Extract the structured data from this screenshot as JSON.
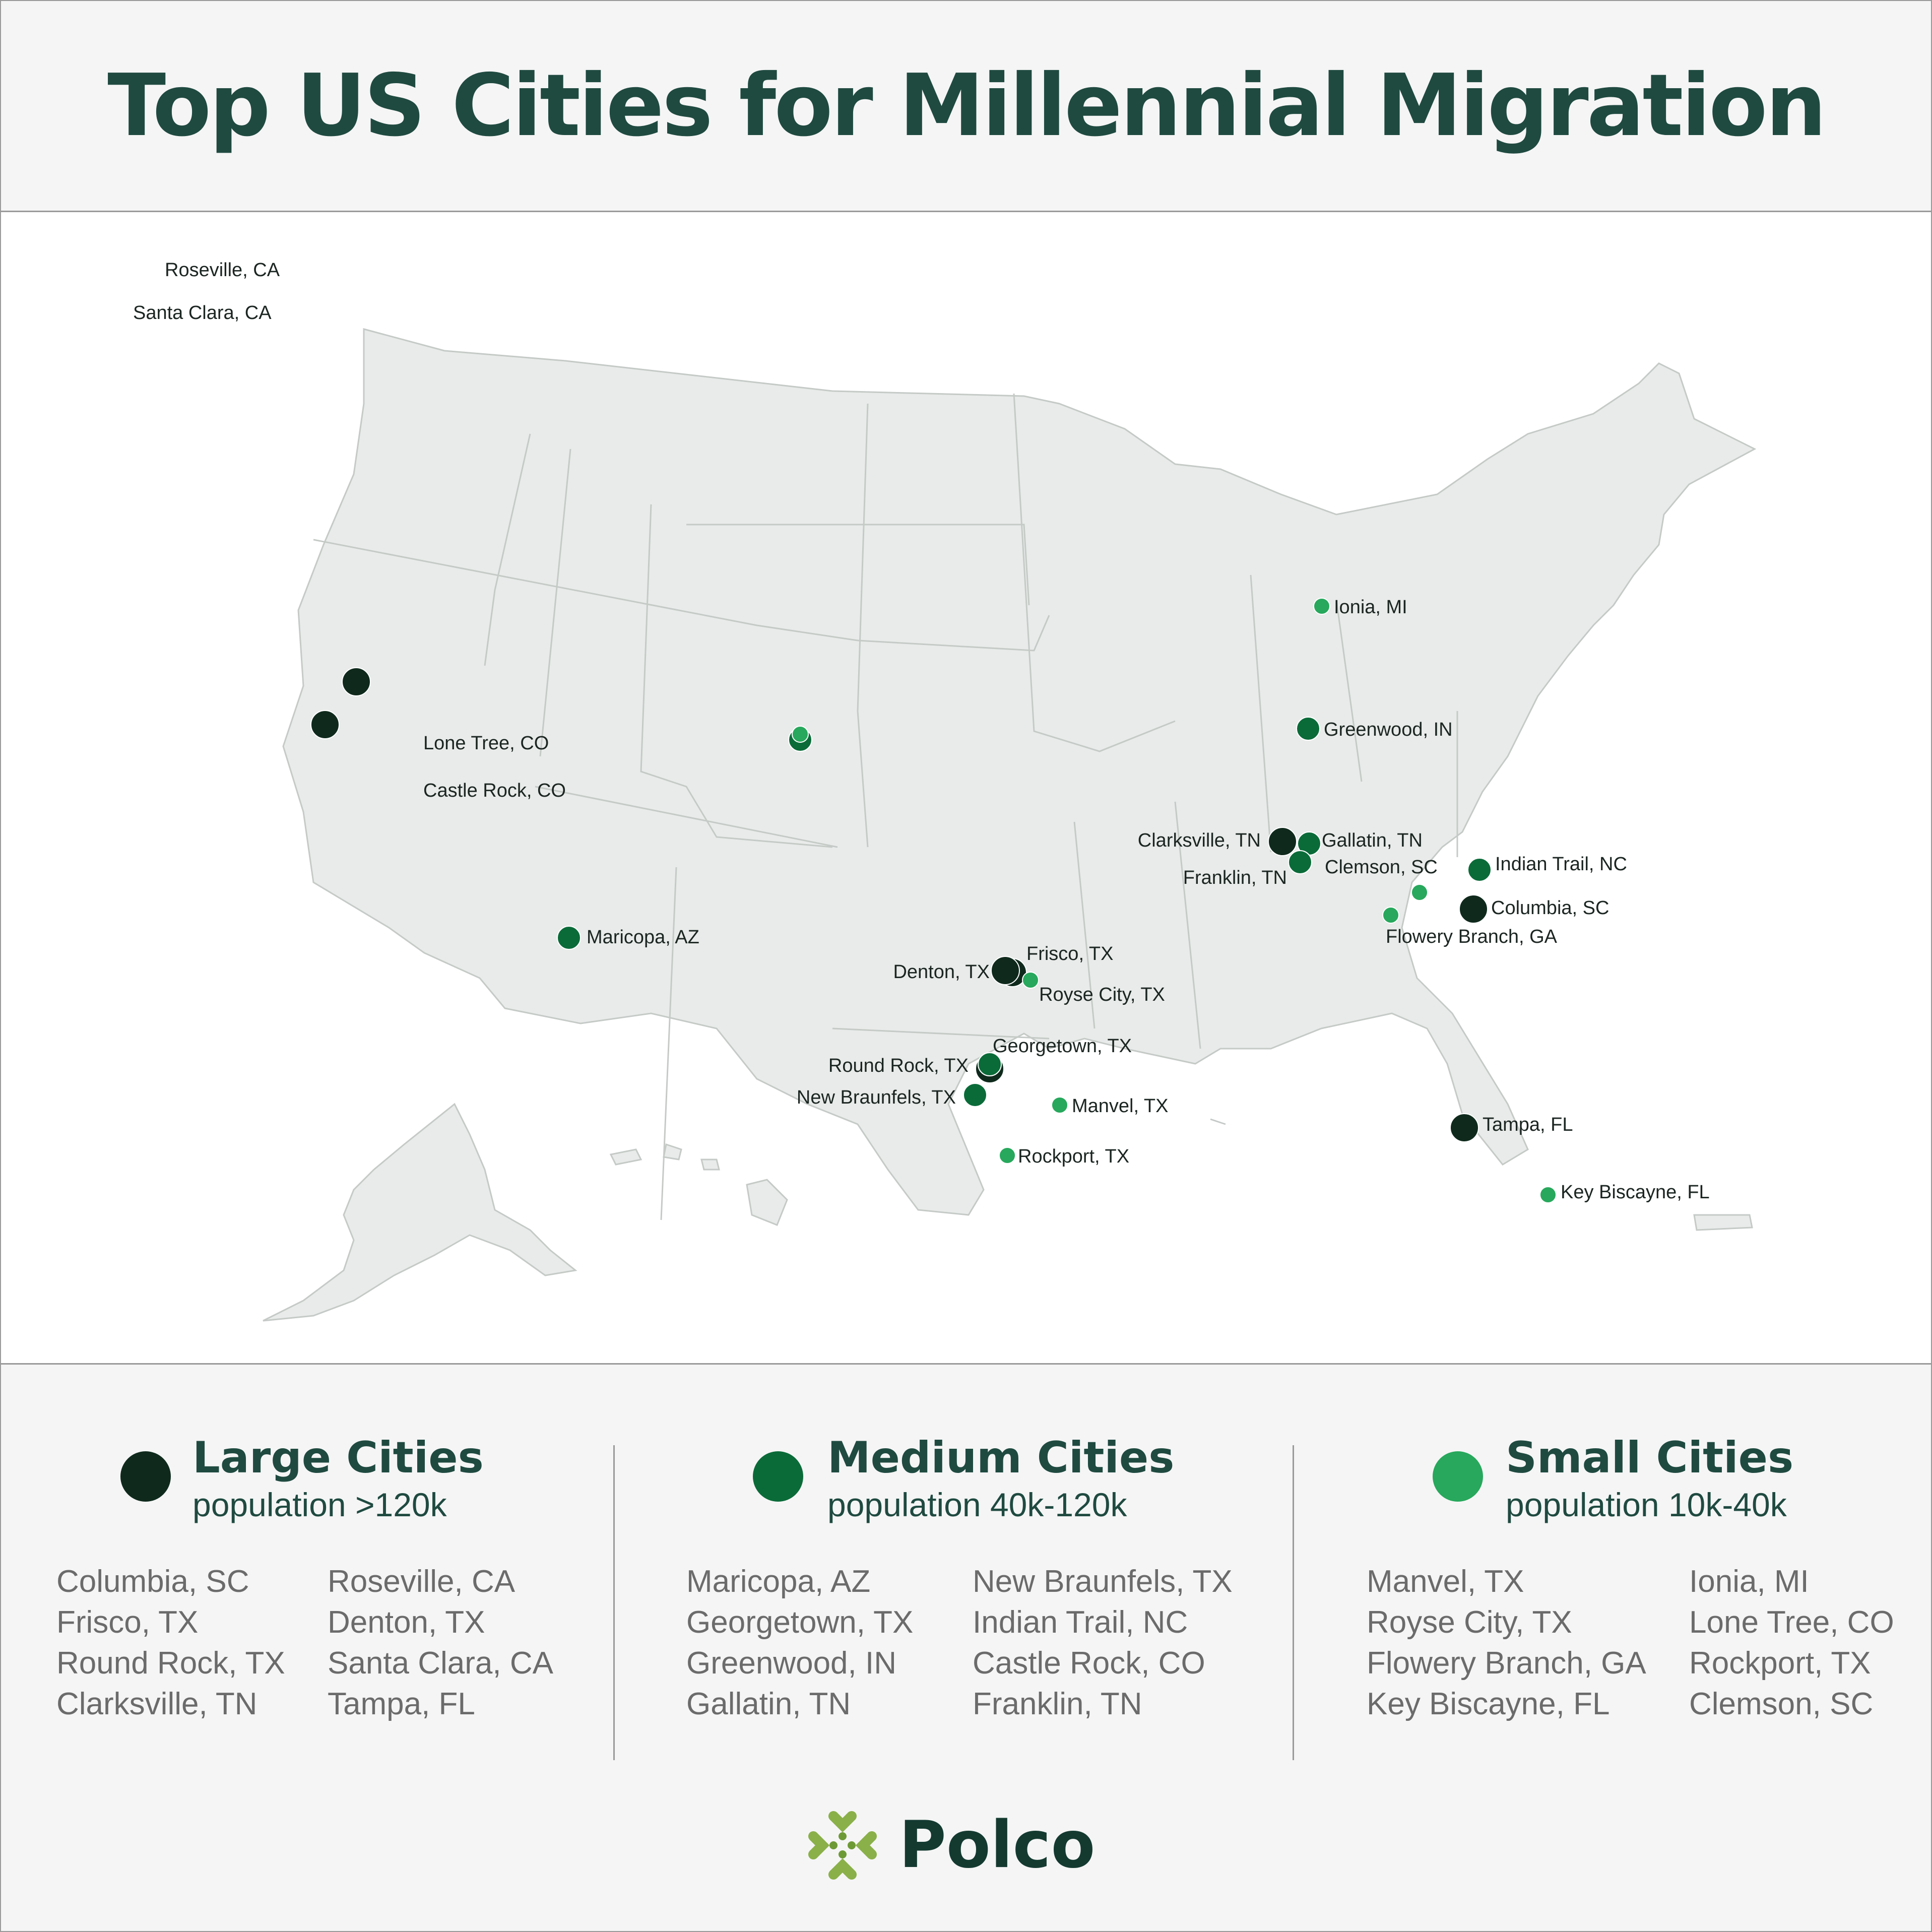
{
  "header": {
    "title": "Top US Cities for Millennial Migration"
  },
  "colors": {
    "large": "#0f2a1d",
    "medium": "#0a6b39",
    "small": "#27a85c",
    "heading": "#1f4a40",
    "land": "#e8ebe9"
  },
  "map_markers": [
    {
      "name": "Roseville, CA",
      "size": "large"
    },
    {
      "name": "Santa Clara, CA",
      "size": "large"
    },
    {
      "name": "Lone Tree, CO",
      "size": "small"
    },
    {
      "name": "Castle Rock, CO",
      "size": "medium"
    },
    {
      "name": "Maricopa, AZ",
      "size": "medium"
    },
    {
      "name": "Ionia, MI",
      "size": "small"
    },
    {
      "name": "Greenwood, IN",
      "size": "medium"
    },
    {
      "name": "Clarksville, TN",
      "size": "large"
    },
    {
      "name": "Gallatin, TN",
      "size": "medium"
    },
    {
      "name": "Franklin, TN",
      "size": "medium"
    },
    {
      "name": "Clemson, SC",
      "size": "small"
    },
    {
      "name": "Indian Trail, NC",
      "size": "medium"
    },
    {
      "name": "Columbia, SC",
      "size": "large"
    },
    {
      "name": "Flowery Branch, GA",
      "size": "small"
    },
    {
      "name": "Frisco, TX",
      "size": "large"
    },
    {
      "name": "Denton, TX",
      "size": "large"
    },
    {
      "name": "Royse City, TX",
      "size": "small"
    },
    {
      "name": "Georgetown, TX",
      "size": "medium"
    },
    {
      "name": "Round Rock, TX",
      "size": "large"
    },
    {
      "name": "New Braunfels, TX",
      "size": "medium"
    },
    {
      "name": "Manvel, TX",
      "size": "small"
    },
    {
      "name": "Rockport, TX",
      "size": "small"
    },
    {
      "name": "Tampa, FL",
      "size": "large"
    },
    {
      "name": "Key Biscayne, FL",
      "size": "small"
    }
  ],
  "legend": {
    "large": {
      "title": "Large Cities",
      "subtitle": "population >120k",
      "col1": [
        "Columbia, SC",
        "Frisco, TX",
        "Round Rock, TX",
        "Clarksville, TN"
      ],
      "col2": [
        "Roseville, CA",
        "Denton, TX",
        "Santa Clara, CA",
        "Tampa, FL"
      ]
    },
    "medium": {
      "title": "Medium Cities",
      "subtitle": "population 40k-120k",
      "col1": [
        "Maricopa, AZ",
        "Georgetown, TX",
        "Greenwood, IN",
        "Gallatin, TN"
      ],
      "col2": [
        "New Braunfels, TX",
        "Indian Trail, NC",
        "Castle Rock, CO",
        "Franklin, TN"
      ]
    },
    "small": {
      "title": "Small Cities",
      "subtitle": "population 10k-40k",
      "col1": [
        "Manvel, TX",
        "Royse City, TX",
        "Flowery Branch, GA",
        "Key Biscayne, FL"
      ],
      "col2": [
        "Ionia, MI",
        "Lone Tree, CO",
        "Rockport, TX",
        "Clemson, SC"
      ]
    }
  },
  "brand": {
    "name": "Polco",
    "icon": "polco-logo-icon"
  }
}
